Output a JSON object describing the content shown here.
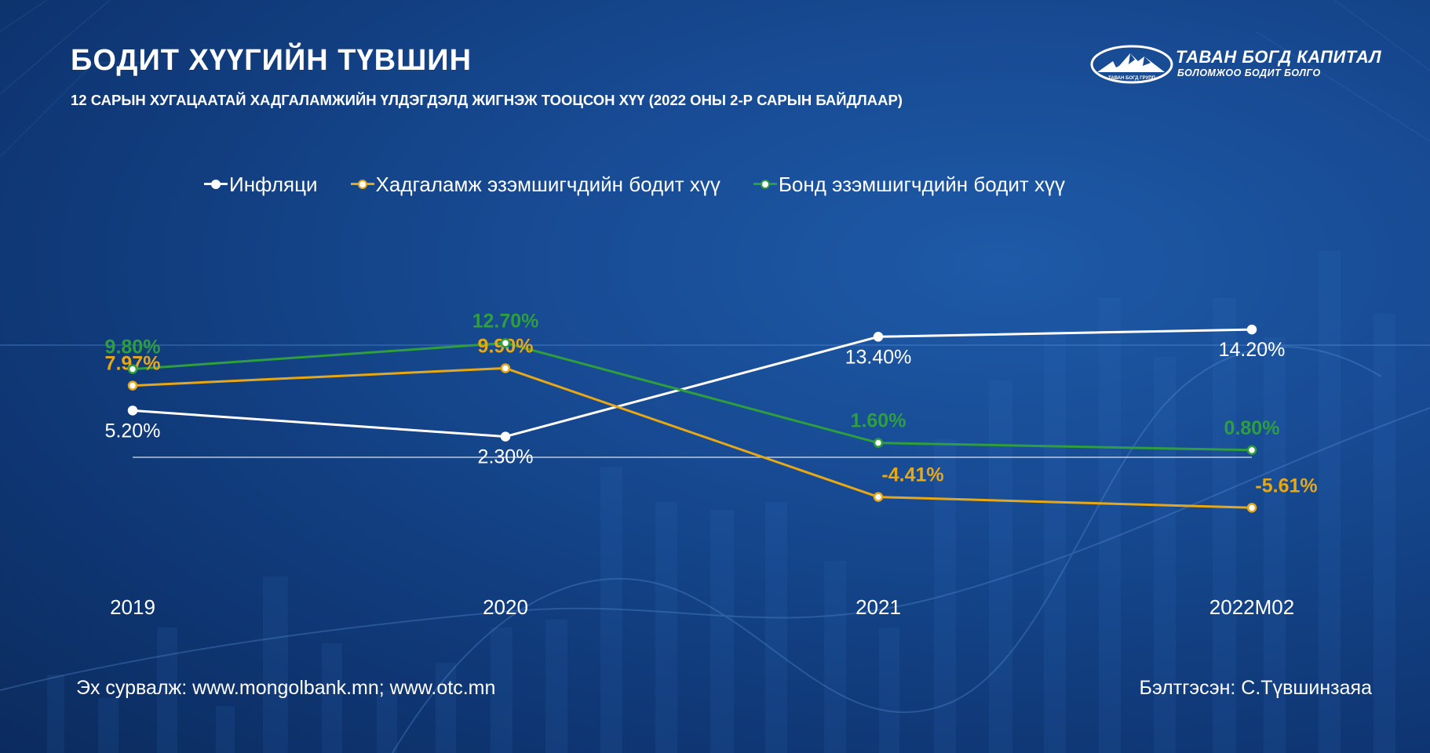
{
  "title": "БОДИТ ХҮҮГИЙН ТҮВШИН",
  "subtitle": "12 САРЫН ХУГАЦААТАЙ ХАДГАЛАМЖИЙН ҮЛДЭГДЭЛД ЖИГНЭЖ ТООЦСОН ХҮҮ (2022 ОНЫ 2-Р САРЫН БАЙДЛААР)",
  "logo": {
    "name": "ТАВАН БОГД КАПИТАЛ",
    "tagline": "БОЛОМЖОО БОДИТ БОЛГО",
    "badge_text": "ТАВАН БОГД ГРУПП"
  },
  "legend": [
    {
      "label": "Инфляци",
      "color": "#ffffff"
    },
    {
      "label": "Хадгаламж эзэмшигчдийн бодит хүү",
      "color": "#e6a817"
    },
    {
      "label": "Бонд эзэмшигчдийн бодит хүү",
      "color": "#2e9e3e"
    }
  ],
  "chart_data": {
    "type": "line",
    "categories": [
      "2019",
      "2020",
      "2021",
      "2022M02"
    ],
    "series": [
      {
        "name": "Инфляци",
        "color": "#ffffff",
        "values": [
          5.2,
          2.3,
          13.4,
          14.2
        ],
        "labels": [
          "5.20%",
          "2.30%",
          "13.40%",
          "14.20%"
        ]
      },
      {
        "name": "Хадгаламж эзэмшигчдийн бодит хүү",
        "color": "#e6a817",
        "values": [
          7.97,
          9.9,
          -4.41,
          -5.61
        ],
        "labels": [
          "7.97%",
          "9.90%",
          "-4.41%",
          "-5.61%"
        ]
      },
      {
        "name": "Бонд эзэмшигчдийн бодит хүү",
        "color": "#2e9e3e",
        "values": [
          9.8,
          12.7,
          1.6,
          0.8
        ],
        "labels": [
          "9.80%",
          "12.70%",
          "1.60%",
          "0.80%"
        ]
      }
    ],
    "zero_line": true,
    "grid": false,
    "legend_position": "top"
  },
  "footer": {
    "source": "Эх сурвалж: www.mongolbank.mn; www.otc.mn",
    "author": "Бэлтгэсэн: С.Түвшинзаяа"
  }
}
